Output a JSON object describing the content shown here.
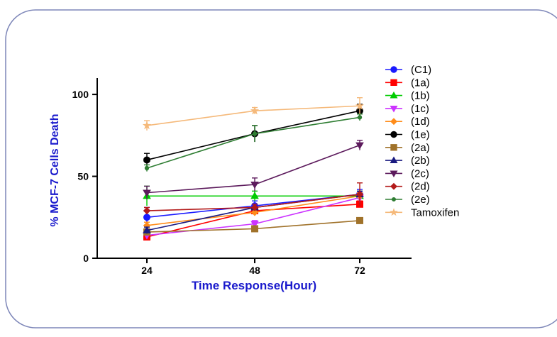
{
  "chart_data": {
    "type": "line",
    "xlabel": "Time Response(Hour)",
    "ylabel": "% MCF-7 Cells Death",
    "x": [
      24,
      48,
      72
    ],
    "x_tick_labels": [
      "24",
      "48",
      "72"
    ],
    "y_ticks": [
      0,
      50,
      100
    ],
    "y_tick_labels": [
      "0",
      "50",
      "100"
    ],
    "ylim": [
      0,
      110
    ],
    "grid": false,
    "legend_position": "right",
    "series": [
      {
        "name": "(C1)",
        "color": "#1a1aff",
        "marker": "circle",
        "values": [
          25,
          32,
          39
        ],
        "errors": [
          6,
          3,
          3
        ]
      },
      {
        "name": "(1a)",
        "color": "#ff0000",
        "marker": "square",
        "values": [
          13,
          29,
          33
        ],
        "errors": [
          2,
          2,
          2
        ]
      },
      {
        "name": "(1b)",
        "color": "#00cc00",
        "marker": "triangle-up",
        "values": [
          38,
          38,
          38
        ],
        "errors": [
          6,
          3,
          3
        ]
      },
      {
        "name": "(1c)",
        "color": "#cc33ff",
        "marker": "triangle-down",
        "values": [
          14,
          21,
          37
        ],
        "errors": [
          2,
          2,
          3
        ]
      },
      {
        "name": "(1d)",
        "color": "#ff8c1a",
        "marker": "diamond",
        "values": [
          20,
          28,
          38
        ],
        "errors": [
          2,
          2,
          2
        ]
      },
      {
        "name": "(1e)",
        "color": "#000000",
        "marker": "circle",
        "values": [
          60,
          76,
          90
        ],
        "errors": [
          4,
          5,
          4
        ]
      },
      {
        "name": "(2a)",
        "color": "#a0722a",
        "marker": "square",
        "values": [
          16,
          18,
          23
        ],
        "errors": [
          2,
          1,
          1
        ]
      },
      {
        "name": "(2b)",
        "color": "#1a1a80",
        "marker": "triangle-up",
        "values": [
          17,
          31,
          39
        ],
        "errors": [
          2,
          2,
          2
        ]
      },
      {
        "name": "(2c)",
        "color": "#5c1a5c",
        "marker": "triangle-down",
        "values": [
          40,
          45,
          69
        ],
        "errors": [
          4,
          4,
          3
        ]
      },
      {
        "name": "(2d)",
        "color": "#b31a1a",
        "marker": "diamond",
        "values": [
          29,
          31,
          39
        ],
        "errors": [
          2,
          2,
          7
        ]
      },
      {
        "name": "(2e)",
        "color": "#2e7d32",
        "marker": "circle-small",
        "values": [
          55,
          76,
          86
        ],
        "errors": [
          2,
          5,
          2
        ]
      },
      {
        "name": "Tamoxifen",
        "color": "#f5b97a",
        "marker": "star",
        "values": [
          81,
          90,
          93
        ],
        "errors": [
          3,
          2,
          5
        ]
      }
    ]
  }
}
